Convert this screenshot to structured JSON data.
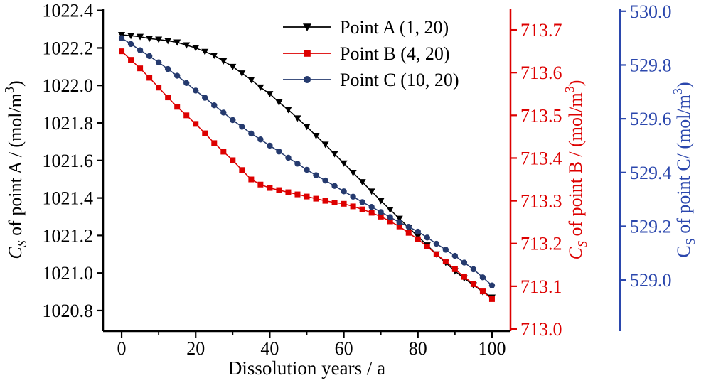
{
  "figure": {
    "background": "#ffffff"
  },
  "chart_data": {
    "type": "line",
    "title": "",
    "xlabel": "Dissolution years / a",
    "xlim": [
      -5,
      105
    ],
    "x_ticks": [
      0,
      20,
      40,
      60,
      80,
      100
    ],
    "x_minor_ticks": [
      10,
      30,
      50,
      70,
      90
    ],
    "legend": {
      "position": "top-center",
      "entries": [
        "Point A (1, 20)",
        "Point B (4, 20)",
        "Point C (10, 20)"
      ]
    },
    "axes": [
      {
        "id": "A",
        "side": "left",
        "color": "#000000",
        "lim": [
          1020.69,
          1022.41
        ],
        "tick_decimals": 1,
        "ticks": [
          1020.8,
          1021.0,
          1021.2,
          1021.4,
          1021.6,
          1021.8,
          1022.0,
          1022.2,
          1022.4
        ],
        "label_segments": [
          {
            "t": "C",
            "i": true
          },
          {
            "t": "S",
            "i": true,
            "s": "sub"
          },
          {
            "t": " of point A / (mol/m"
          },
          {
            "t": "3",
            "s": "sup"
          },
          {
            "t": ")"
          }
        ]
      },
      {
        "id": "B",
        "side": "right",
        "color": "#dd0000",
        "lim": [
          712.995,
          713.75
        ],
        "tick_decimals": 1,
        "ticks": [
          713.0,
          713.1,
          713.2,
          713.3,
          713.4,
          713.5,
          713.6,
          713.7
        ],
        "label_segments": [
          {
            "t": "C",
            "i": true
          },
          {
            "t": "S",
            "i": true,
            "s": "sub"
          },
          {
            "t": " of point B / (mol/m"
          },
          {
            "t": "3",
            "s": "sup"
          },
          {
            "t": ")"
          }
        ]
      },
      {
        "id": "C",
        "side": "right2",
        "color": "#2b47ad",
        "lim": [
          528.81,
          530.01
        ],
        "tick_decimals": 1,
        "ticks": [
          529.0,
          529.2,
          529.4,
          529.6,
          529.8,
          530.0
        ],
        "label_segments": [
          {
            "t": "C"
          },
          {
            "t": "S",
            "s": "sub"
          },
          {
            "t": " of point C/ (mol/m"
          },
          {
            "t": "3",
            "s": "sup"
          },
          {
            "t": ")"
          }
        ]
      }
    ],
    "x": [
      0,
      2.5,
      5,
      7.5,
      10,
      12.5,
      15,
      17.5,
      20,
      22.5,
      25,
      27.5,
      30,
      32.5,
      35,
      37.5,
      40,
      42.5,
      45,
      47.5,
      50,
      52.5,
      55,
      57.5,
      60,
      62.5,
      65,
      67.5,
      70,
      72.5,
      75,
      77.5,
      80,
      82.5,
      85,
      87.5,
      90,
      92.5,
      95,
      97.5,
      100
    ],
    "series": [
      {
        "name": "Point A (1, 20)",
        "axis": "A",
        "color": "#000000",
        "marker": "triangle-down",
        "values": [
          1022.27,
          1022.265,
          1022.26,
          1022.25,
          1022.245,
          1022.238,
          1022.23,
          1022.215,
          1022.2,
          1022.18,
          1022.16,
          1022.13,
          1022.1,
          1022.065,
          1022.03,
          1021.99,
          1021.955,
          1021.91,
          1021.87,
          1021.825,
          1021.78,
          1021.732,
          1021.685,
          1021.635,
          1021.585,
          1021.535,
          1021.485,
          1021.435,
          1021.385,
          1021.338,
          1021.29,
          1021.242,
          1021.195,
          1021.148,
          1021.1,
          1021.055,
          1021.01,
          1020.972,
          1020.935,
          1020.9,
          1020.87
        ]
      },
      {
        "name": "Point B (4, 20)",
        "axis": "B",
        "color": "#dd0000",
        "marker": "square",
        "values": [
          713.65,
          713.63,
          713.61,
          713.588,
          713.565,
          713.542,
          713.52,
          713.5,
          713.48,
          713.458,
          713.435,
          713.415,
          713.395,
          713.372,
          713.35,
          713.338,
          713.33,
          713.325,
          713.32,
          713.315,
          713.31,
          713.305,
          713.3,
          713.296,
          713.293,
          713.287,
          713.28,
          713.272,
          713.263,
          713.252,
          713.24,
          713.225,
          713.21,
          713.193,
          713.175,
          713.158,
          713.14,
          713.122,
          713.105,
          713.088,
          713.07
        ]
      },
      {
        "name": "Point C (10, 20)",
        "axis": "C",
        "color": "#253a6e",
        "marker": "circle",
        "values": [
          529.9,
          529.878,
          529.855,
          529.833,
          529.81,
          529.785,
          529.76,
          529.733,
          529.705,
          529.678,
          529.65,
          529.623,
          529.595,
          529.57,
          529.545,
          529.523,
          529.5,
          529.478,
          529.455,
          529.433,
          529.41,
          529.39,
          529.37,
          529.35,
          529.33,
          529.31,
          529.29,
          529.272,
          529.253,
          529.234,
          529.215,
          529.198,
          529.18,
          529.158,
          529.135,
          529.113,
          529.09,
          529.065,
          529.04,
          529.01,
          528.98
        ]
      }
    ]
  }
}
